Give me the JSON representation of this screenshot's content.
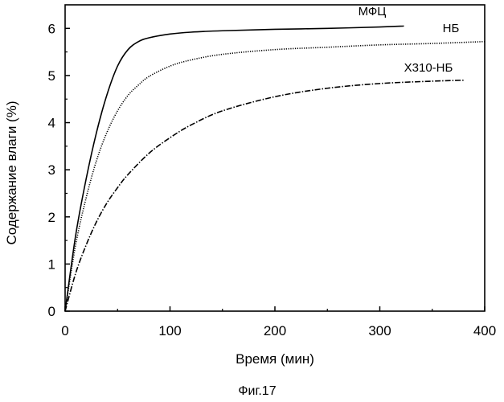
{
  "chart_data": {
    "type": "line",
    "title": "",
    "xlabel": "Время (мин)",
    "ylabel": "Содержание влаги (%)",
    "xlim": [
      0,
      400
    ],
    "ylim": [
      0,
      6.5
    ],
    "xticks": [
      0,
      100,
      200,
      300,
      400
    ],
    "yticks": [
      0,
      1,
      2,
      3,
      4,
      5,
      6
    ],
    "grid": false,
    "legend": "inline labels near line ends",
    "caption": "Фиг.17",
    "series": [
      {
        "name": "МФЦ",
        "style": "solid",
        "x": [
          0,
          10,
          20,
          30,
          40,
          50,
          60,
          70,
          80,
          100,
          120,
          150,
          200,
          250,
          300,
          323
        ],
        "y": [
          0,
          1.6,
          2.8,
          3.8,
          4.6,
          5.2,
          5.55,
          5.72,
          5.8,
          5.88,
          5.92,
          5.95,
          5.98,
          6.0,
          6.03,
          6.05
        ]
      },
      {
        "name": "НБ",
        "style": "dotted",
        "x": [
          0,
          10,
          20,
          30,
          40,
          50,
          60,
          70,
          80,
          100,
          120,
          150,
          200,
          250,
          300,
          350,
          400
        ],
        "y": [
          0,
          1.4,
          2.4,
          3.2,
          3.8,
          4.25,
          4.58,
          4.8,
          4.98,
          5.2,
          5.33,
          5.45,
          5.55,
          5.6,
          5.65,
          5.68,
          5.72
        ]
      },
      {
        "name": "Х310-НБ",
        "style": "dashdot",
        "x": [
          0,
          10,
          20,
          30,
          40,
          50,
          60,
          80,
          100,
          120,
          150,
          200,
          250,
          300,
          350,
          380
        ],
        "y": [
          0,
          0.8,
          1.4,
          1.9,
          2.3,
          2.62,
          2.9,
          3.35,
          3.68,
          3.95,
          4.25,
          4.55,
          4.73,
          4.83,
          4.88,
          4.9
        ]
      }
    ]
  }
}
